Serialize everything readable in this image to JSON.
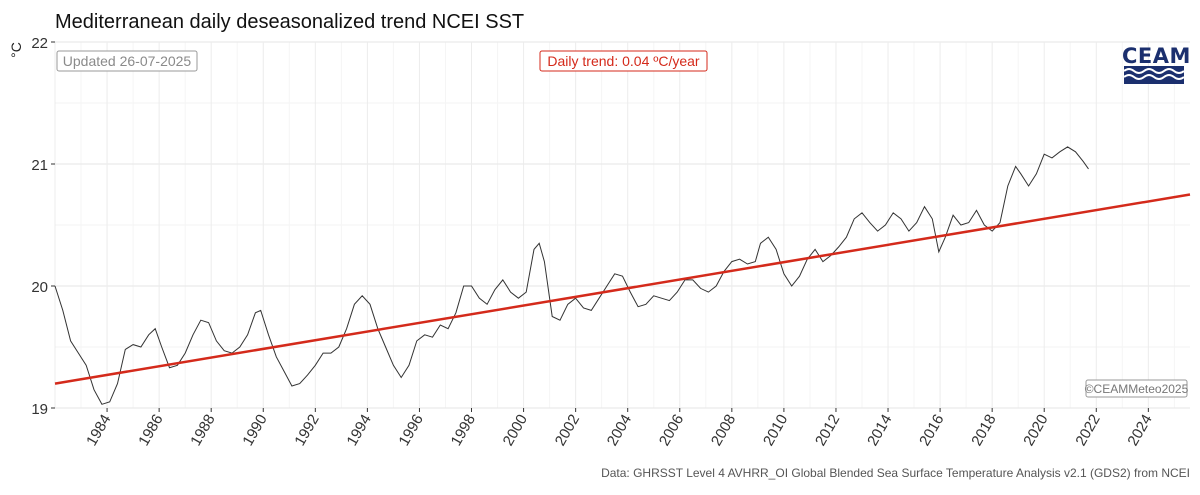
{
  "header": {
    "title": "Mediterranean daily deseasonalized trend NCEI SST",
    "unit_label": "°C"
  },
  "badges": {
    "updated": "Updated 26-07-2025",
    "trend": "Daily trend: 0.04 ºC/year",
    "copyright": "©CEAMMeteo2025"
  },
  "logo": {
    "text": "CEAM"
  },
  "footer": {
    "source": "Data: GHRSST Level 4 AVHRR_OI Global Blended Sea Surface Temperature Analysis v2.1 (GDS2) from NCEI"
  },
  "colors": {
    "trend_line": "#d42a1b",
    "series_line": "#333333",
    "grid": "#ececec",
    "logo": "#1b2f6e"
  },
  "chart_data": {
    "type": "line",
    "title": "Mediterranean daily deseasonalized trend NCEI SST",
    "xlabel": "",
    "ylabel": "°C",
    "xlim": [
      1982.0,
      2025.6
    ],
    "ylim": [
      19,
      22
    ],
    "yticks": [
      19,
      20,
      21,
      22
    ],
    "xticks": [
      "1984",
      "1986",
      "1988",
      "1990",
      "1992",
      "1994",
      "1996",
      "1998",
      "2000",
      "2002",
      "2004",
      "2006",
      "2008",
      "2010",
      "2012",
      "2014",
      "2016",
      "2018",
      "2020",
      "2022",
      "2024"
    ],
    "grid": true,
    "series": [
      {
        "values": [
          [
            1982.0,
            20.0
          ],
          [
            1982.3,
            19.8
          ],
          [
            1982.6,
            19.55
          ],
          [
            1982.9,
            19.45
          ],
          [
            1983.2,
            19.35
          ],
          [
            1983.5,
            19.15
          ],
          [
            1983.8,
            19.03
          ],
          [
            1984.1,
            19.05
          ],
          [
            1984.4,
            19.2
          ],
          [
            1984.7,
            19.48
          ],
          [
            1985.0,
            19.52
          ],
          [
            1985.3,
            19.5
          ],
          [
            1985.6,
            19.6
          ],
          [
            1985.85,
            19.65
          ],
          [
            1986.1,
            19.5
          ],
          [
            1986.4,
            19.33
          ],
          [
            1986.7,
            19.35
          ],
          [
            1987.0,
            19.45
          ],
          [
            1987.3,
            19.6
          ],
          [
            1987.6,
            19.72
          ],
          [
            1987.9,
            19.7
          ],
          [
            1988.2,
            19.55
          ],
          [
            1988.5,
            19.47
          ],
          [
            1988.8,
            19.45
          ],
          [
            1989.1,
            19.5
          ],
          [
            1989.4,
            19.6
          ],
          [
            1989.7,
            19.78
          ],
          [
            1989.9,
            19.8
          ],
          [
            1990.2,
            19.6
          ],
          [
            1990.5,
            19.42
          ],
          [
            1990.8,
            19.3
          ],
          [
            1991.1,
            19.18
          ],
          [
            1991.4,
            19.2
          ],
          [
            1991.7,
            19.27
          ],
          [
            1992.0,
            19.35
          ],
          [
            1992.3,
            19.45
          ],
          [
            1992.6,
            19.45
          ],
          [
            1992.9,
            19.5
          ],
          [
            1993.2,
            19.65
          ],
          [
            1993.5,
            19.85
          ],
          [
            1993.8,
            19.92
          ],
          [
            1994.1,
            19.85
          ],
          [
            1994.4,
            19.65
          ],
          [
            1994.7,
            19.5
          ],
          [
            1995.0,
            19.35
          ],
          [
            1995.3,
            19.25
          ],
          [
            1995.6,
            19.35
          ],
          [
            1995.9,
            19.55
          ],
          [
            1996.2,
            19.6
          ],
          [
            1996.5,
            19.58
          ],
          [
            1996.8,
            19.68
          ],
          [
            1997.1,
            19.65
          ],
          [
            1997.4,
            19.78
          ],
          [
            1997.7,
            20.0
          ],
          [
            1998.0,
            20.0
          ],
          [
            1998.3,
            19.9
          ],
          [
            1998.6,
            19.85
          ],
          [
            1998.9,
            19.97
          ],
          [
            1999.2,
            20.05
          ],
          [
            1999.5,
            19.95
          ],
          [
            1999.8,
            19.9
          ],
          [
            2000.1,
            19.95
          ],
          [
            2000.4,
            20.3
          ],
          [
            2000.6,
            20.35
          ],
          [
            2000.8,
            20.2
          ],
          [
            2001.1,
            19.75
          ],
          [
            2001.4,
            19.72
          ],
          [
            2001.7,
            19.85
          ],
          [
            2002.0,
            19.9
          ],
          [
            2002.3,
            19.82
          ],
          [
            2002.6,
            19.8
          ],
          [
            2002.9,
            19.9
          ],
          [
            2003.2,
            20.0
          ],
          [
            2003.5,
            20.1
          ],
          [
            2003.8,
            20.08
          ],
          [
            2004.1,
            19.95
          ],
          [
            2004.4,
            19.83
          ],
          [
            2004.7,
            19.85
          ],
          [
            2005.0,
            19.92
          ],
          [
            2005.3,
            19.9
          ],
          [
            2005.6,
            19.88
          ],
          [
            2005.9,
            19.95
          ],
          [
            2006.2,
            20.05
          ],
          [
            2006.5,
            20.05
          ],
          [
            2006.8,
            19.98
          ],
          [
            2007.1,
            19.95
          ],
          [
            2007.4,
            20.0
          ],
          [
            2007.7,
            20.12
          ],
          [
            2008.0,
            20.2
          ],
          [
            2008.3,
            20.22
          ],
          [
            2008.6,
            20.18
          ],
          [
            2008.9,
            20.2
          ],
          [
            2009.1,
            20.35
          ],
          [
            2009.4,
            20.4
          ],
          [
            2009.7,
            20.3
          ],
          [
            2010.0,
            20.1
          ],
          [
            2010.3,
            20.0
          ],
          [
            2010.6,
            20.08
          ],
          [
            2010.9,
            20.22
          ],
          [
            2011.2,
            20.3
          ],
          [
            2011.5,
            20.2
          ],
          [
            2011.8,
            20.25
          ],
          [
            2012.1,
            20.32
          ],
          [
            2012.4,
            20.4
          ],
          [
            2012.7,
            20.55
          ],
          [
            2013.0,
            20.6
          ],
          [
            2013.3,
            20.52
          ],
          [
            2013.6,
            20.45
          ],
          [
            2013.9,
            20.5
          ],
          [
            2014.2,
            20.6
          ],
          [
            2014.5,
            20.55
          ],
          [
            2014.8,
            20.45
          ],
          [
            2015.1,
            20.52
          ],
          [
            2015.4,
            20.65
          ],
          [
            2015.7,
            20.55
          ],
          [
            2015.95,
            20.28
          ],
          [
            2016.2,
            20.4
          ],
          [
            2016.5,
            20.58
          ],
          [
            2016.8,
            20.5
          ],
          [
            2017.1,
            20.52
          ],
          [
            2017.4,
            20.62
          ],
          [
            2017.7,
            20.5
          ],
          [
            2018.0,
            20.45
          ],
          [
            2018.3,
            20.52
          ],
          [
            2018.6,
            20.82
          ],
          [
            2018.9,
            20.98
          ],
          [
            2019.1,
            20.92
          ],
          [
            2019.4,
            20.82
          ],
          [
            2019.7,
            20.92
          ],
          [
            2020.0,
            21.08
          ],
          [
            2020.3,
            21.05
          ],
          [
            2020.6,
            21.1
          ],
          [
            2020.9,
            21.14
          ],
          [
            2021.2,
            21.1
          ],
          [
            2021.5,
            21.02
          ],
          [
            2021.7,
            20.96
          ]
        ]
      },
      {
        "name": "Daily trend: 0.04 ºC/year",
        "values": [
          [
            1982.0,
            19.2
          ],
          [
            2025.6,
            20.75
          ]
        ]
      }
    ]
  }
}
